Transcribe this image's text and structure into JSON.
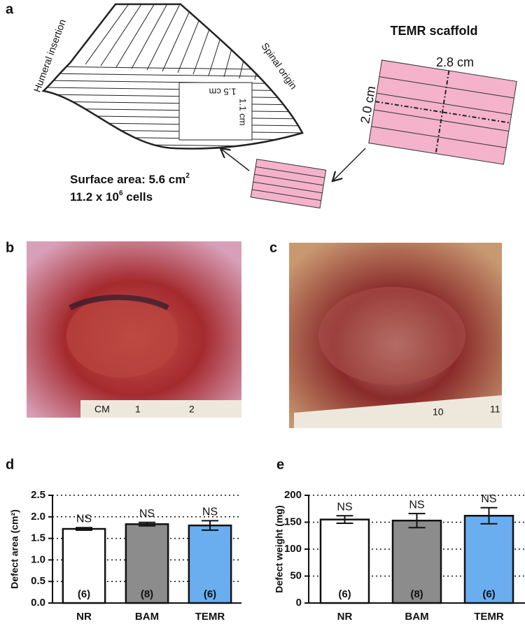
{
  "panel_labels": [
    "a",
    "b",
    "c",
    "d",
    "e"
  ],
  "panel_a": {
    "muscle_labels": [
      "Humeral insertion",
      "Spinal origin"
    ],
    "defect_dims": [
      "1.5 cm",
      "1.1 cm"
    ],
    "scaffold_title": "TEMR scaffold",
    "scaffold_dims": [
      "2.8 cm",
      "2.0 cm"
    ],
    "surface_area": {
      "text": "Surface area: 5.6 cm",
      "sup": "2"
    },
    "cells": {
      "text": "11.2 x 10",
      "sup": "6",
      "suffix": " cells"
    }
  },
  "panel_b": {
    "ruler": [
      "CM",
      "1",
      "2"
    ]
  },
  "panel_c": {
    "ruler": [
      "10",
      "11"
    ]
  },
  "chart_data": [
    {
      "type": "bar",
      "ylabel": "Defect area (cm²)",
      "categories": [
        "NR",
        "BAM",
        "TEMR"
      ],
      "values": [
        1.72,
        1.83,
        1.8
      ],
      "errors": [
        0.03,
        0.04,
        0.11
      ],
      "colors": [
        "#ffffff",
        "#8c8c8c",
        "#6aaef0"
      ],
      "annotations": [
        "NS",
        "NS",
        "NS"
      ],
      "n_labels": [
        "(6)",
        "(8)",
        "(6)"
      ],
      "ylim": [
        0,
        2.5
      ],
      "yticks": [
        {
          "value": 0,
          "label": "0.0"
        },
        0.5,
        {
          "value": 1,
          "label": "1.0"
        },
        1.5,
        {
          "value": 2,
          "label": "2.0"
        },
        2.5
      ],
      "grid": true
    },
    {
      "type": "bar",
      "ylabel": "Defect weight (mg)",
      "categories": [
        "NR",
        "BAM",
        "TEMR"
      ],
      "values": [
        155,
        153,
        162
      ],
      "errors": [
        7,
        13,
        15
      ],
      "colors": [
        "#ffffff",
        "#8c8c8c",
        "#6aaef0"
      ],
      "annotations": [
        "NS",
        "NS",
        "NS"
      ],
      "n_labels": [
        "(6)",
        "(8)",
        "(6)"
      ],
      "ylim": [
        0,
        200
      ],
      "yticks": [
        0,
        50,
        100,
        150,
        200
      ],
      "grid": true
    }
  ]
}
